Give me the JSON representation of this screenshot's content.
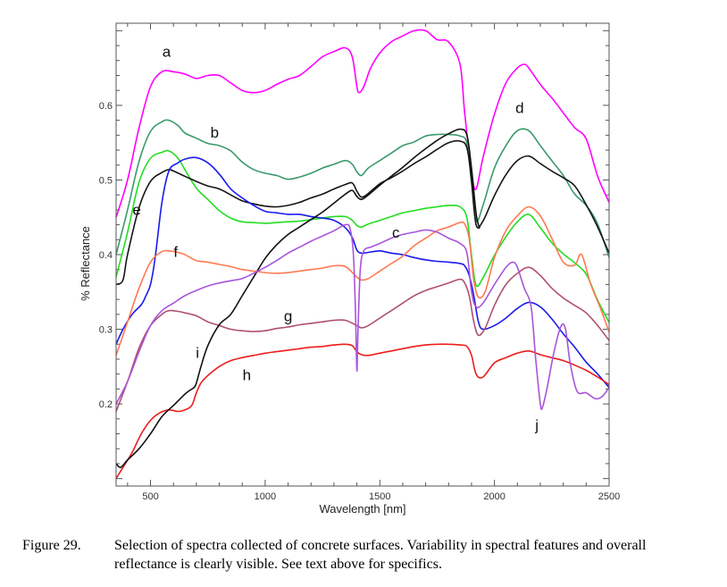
{
  "chart_data": {
    "type": "line",
    "xlabel": "Wavelength [nm]",
    "ylabel": "% Reflectance",
    "xlim": [
      350,
      2500
    ],
    "ylim": [
      0.09,
      0.71
    ],
    "xticks": [
      500,
      1000,
      1500,
      2000,
      2500
    ],
    "yticks": [
      0.2,
      0.3,
      0.4,
      0.5,
      0.6
    ],
    "grid": false,
    "series": [
      {
        "name": "a",
        "color": "#ff00ff",
        "label_at": [
          570,
          0.665
        ],
        "x": [
          350,
          400,
          450,
          500,
          550,
          600,
          650,
          700,
          750,
          800,
          850,
          900,
          950,
          1000,
          1050,
          1100,
          1150,
          1200,
          1250,
          1300,
          1350,
          1380,
          1400,
          1410,
          1430,
          1460,
          1500,
          1550,
          1600,
          1650,
          1700,
          1750,
          1800,
          1850,
          1870,
          1900,
          1920,
          1950,
          2000,
          2050,
          2100,
          2130,
          2150,
          2200,
          2250,
          2300,
          2350,
          2400,
          2450,
          2500
        ],
        "y": [
          0.45,
          0.5,
          0.57,
          0.625,
          0.645,
          0.645,
          0.642,
          0.636,
          0.64,
          0.64,
          0.63,
          0.62,
          0.617,
          0.62,
          0.628,
          0.635,
          0.64,
          0.652,
          0.665,
          0.672,
          0.677,
          0.665,
          0.625,
          0.617,
          0.625,
          0.65,
          0.67,
          0.685,
          0.693,
          0.7,
          0.7,
          0.688,
          0.685,
          0.655,
          0.59,
          0.51,
          0.488,
          0.53,
          0.588,
          0.63,
          0.65,
          0.655,
          0.65,
          0.628,
          0.61,
          0.59,
          0.57,
          0.555,
          0.505,
          0.47
        ]
      },
      {
        "name": "b",
        "color": "#3a9a6a",
        "label_at": [
          780,
          0.557
        ],
        "x": [
          350,
          400,
          450,
          500,
          550,
          580,
          620,
          650,
          700,
          750,
          800,
          850,
          900,
          950,
          1000,
          1050,
          1100,
          1150,
          1200,
          1250,
          1300,
          1350,
          1380,
          1400,
          1420,
          1450,
          1500,
          1550,
          1600,
          1650,
          1700,
          1750,
          1800,
          1850,
          1880,
          1900,
          1920,
          1950,
          2000,
          2050,
          2100,
          2150,
          2200,
          2250,
          2300,
          2350,
          2400,
          2450,
          2500
        ],
        "y": [
          0.4,
          0.46,
          0.525,
          0.565,
          0.578,
          0.58,
          0.573,
          0.563,
          0.556,
          0.549,
          0.546,
          0.539,
          0.524,
          0.514,
          0.509,
          0.506,
          0.501,
          0.504,
          0.509,
          0.516,
          0.521,
          0.526,
          0.521,
          0.511,
          0.506,
          0.516,
          0.526,
          0.536,
          0.546,
          0.551,
          0.559,
          0.561,
          0.561,
          0.559,
          0.549,
          0.495,
          0.445,
          0.466,
          0.516,
          0.546,
          0.566,
          0.566,
          0.546,
          0.526,
          0.506,
          0.481,
          0.466,
          0.441,
          0.396
        ]
      },
      {
        "name": "c",
        "color": "#22dd22",
        "label_at": [
          1570,
          0.423
        ],
        "x": [
          350,
          400,
          450,
          500,
          550,
          580,
          620,
          650,
          700,
          750,
          800,
          850,
          900,
          950,
          1000,
          1050,
          1100,
          1150,
          1200,
          1250,
          1300,
          1350,
          1380,
          1400,
          1420,
          1450,
          1500,
          1550,
          1600,
          1650,
          1700,
          1750,
          1800,
          1850,
          1880,
          1900,
          1920,
          1950,
          2000,
          2050,
          2100,
          2150,
          2200,
          2250,
          2300,
          2350,
          2400,
          2450,
          2500
        ],
        "y": [
          0.37,
          0.43,
          0.497,
          0.529,
          0.537,
          0.539,
          0.529,
          0.514,
          0.489,
          0.474,
          0.459,
          0.449,
          0.444,
          0.443,
          0.442,
          0.443,
          0.444,
          0.445,
          0.447,
          0.449,
          0.451,
          0.451,
          0.446,
          0.439,
          0.437,
          0.441,
          0.446,
          0.451,
          0.456,
          0.459,
          0.462,
          0.464,
          0.466,
          0.464,
          0.449,
          0.399,
          0.359,
          0.369,
          0.399,
          0.424,
          0.444,
          0.454,
          0.436,
          0.416,
          0.401,
          0.389,
          0.374,
          0.339,
          0.309
        ]
      },
      {
        "name": "d",
        "color": "#151515",
        "label_at": [
          2110,
          0.59
        ],
        "x": [
          350,
          380,
          400,
          450,
          500,
          550,
          580,
          600,
          650,
          700,
          750,
          800,
          850,
          900,
          950,
          1000,
          1050,
          1100,
          1150,
          1200,
          1250,
          1300,
          1350,
          1380,
          1400,
          1420,
          1450,
          1500,
          1550,
          1600,
          1650,
          1700,
          1750,
          1800,
          1850,
          1880,
          1900,
          1920,
          1950,
          2000,
          2050,
          2100,
          2150,
          2200,
          2250,
          2300,
          2350,
          2400,
          2450,
          2500
        ],
        "y": [
          0.36,
          0.366,
          0.4,
          0.463,
          0.498,
          0.51,
          0.514,
          0.512,
          0.505,
          0.498,
          0.492,
          0.488,
          0.48,
          0.472,
          0.468,
          0.465,
          0.464,
          0.466,
          0.47,
          0.476,
          0.481,
          0.488,
          0.494,
          0.496,
          0.485,
          0.477,
          0.482,
          0.495,
          0.503,
          0.512,
          0.522,
          0.531,
          0.541,
          0.55,
          0.552,
          0.543,
          0.5,
          0.44,
          0.445,
          0.479,
          0.507,
          0.526,
          0.532,
          0.522,
          0.512,
          0.503,
          0.492,
          0.467,
          0.437,
          0.402
        ]
      },
      {
        "name": "e",
        "color": "#1a1aee",
        "label_at": [
          440,
          0.453
        ],
        "x": [
          350,
          380,
          420,
          460,
          480,
          500,
          520,
          550,
          580,
          620,
          650,
          700,
          750,
          800,
          850,
          900,
          950,
          1000,
          1050,
          1100,
          1150,
          1200,
          1250,
          1300,
          1350,
          1380,
          1400,
          1420,
          1450,
          1500,
          1550,
          1600,
          1650,
          1700,
          1750,
          1800,
          1850,
          1870,
          1890,
          1910,
          1930,
          1950,
          2000,
          2050,
          2100,
          2150,
          2200,
          2250,
          2300,
          2350,
          2400,
          2450,
          2500
        ],
        "y": [
          0.28,
          0.3,
          0.32,
          0.333,
          0.345,
          0.36,
          0.395,
          0.47,
          0.512,
          0.523,
          0.528,
          0.53,
          0.523,
          0.508,
          0.488,
          0.476,
          0.466,
          0.458,
          0.456,
          0.454,
          0.454,
          0.451,
          0.449,
          0.446,
          0.436,
          0.423,
          0.406,
          0.402,
          0.403,
          0.405,
          0.402,
          0.4,
          0.396,
          0.393,
          0.391,
          0.39,
          0.388,
          0.385,
          0.372,
          0.345,
          0.31,
          0.3,
          0.305,
          0.315,
          0.328,
          0.336,
          0.33,
          0.314,
          0.294,
          0.276,
          0.256,
          0.24,
          0.222
        ]
      },
      {
        "name": "f",
        "color": "#ff7a50",
        "label_at": [
          610,
          0.397
        ],
        "x": [
          350,
          400,
          450,
          500,
          550,
          580,
          620,
          650,
          700,
          750,
          800,
          850,
          900,
          950,
          1000,
          1050,
          1100,
          1150,
          1200,
          1250,
          1300,
          1350,
          1400,
          1420,
          1450,
          1500,
          1550,
          1600,
          1650,
          1700,
          1750,
          1800,
          1850,
          1870,
          1890,
          1910,
          1930,
          1960,
          2000,
          2050,
          2100,
          2150,
          2200,
          2250,
          2300,
          2350,
          2380,
          2420,
          2460,
          2500
        ],
        "y": [
          0.265,
          0.31,
          0.355,
          0.39,
          0.404,
          0.405,
          0.403,
          0.4,
          0.392,
          0.39,
          0.387,
          0.384,
          0.38,
          0.378,
          0.376,
          0.375,
          0.376,
          0.378,
          0.38,
          0.382,
          0.385,
          0.384,
          0.37,
          0.366,
          0.368,
          0.378,
          0.388,
          0.398,
          0.412,
          0.422,
          0.432,
          0.437,
          0.443,
          0.441,
          0.421,
          0.366,
          0.343,
          0.351,
          0.396,
          0.432,
          0.452,
          0.464,
          0.452,
          0.422,
          0.39,
          0.386,
          0.4,
          0.36,
          0.33,
          0.296
        ]
      },
      {
        "name": "g",
        "color": "#b05070",
        "label_at": [
          1100,
          0.311
        ],
        "x": [
          350,
          400,
          450,
          500,
          550,
          580,
          620,
          650,
          700,
          750,
          800,
          850,
          900,
          950,
          1000,
          1050,
          1100,
          1150,
          1200,
          1250,
          1300,
          1350,
          1400,
          1420,
          1450,
          1500,
          1550,
          1600,
          1650,
          1700,
          1750,
          1800,
          1850,
          1870,
          1890,
          1910,
          1930,
          1960,
          2000,
          2050,
          2100,
          2150,
          2200,
          2250,
          2300,
          2350,
          2400,
          2450,
          2500
        ],
        "y": [
          0.19,
          0.23,
          0.275,
          0.305,
          0.32,
          0.325,
          0.324,
          0.322,
          0.318,
          0.31,
          0.305,
          0.3,
          0.298,
          0.297,
          0.298,
          0.301,
          0.303,
          0.306,
          0.308,
          0.31,
          0.312,
          0.312,
          0.305,
          0.302,
          0.305,
          0.315,
          0.325,
          0.335,
          0.345,
          0.352,
          0.357,
          0.362,
          0.367,
          0.362,
          0.345,
          0.31,
          0.292,
          0.302,
          0.332,
          0.36,
          0.375,
          0.383,
          0.372,
          0.355,
          0.342,
          0.332,
          0.322,
          0.305,
          0.285
        ]
      },
      {
        "name": "h",
        "color": "#ee1c1c",
        "label_at": [
          920,
          0.232
        ],
        "x": [
          350,
          380,
          420,
          460,
          500,
          540,
          580,
          620,
          650,
          680,
          700,
          720,
          750,
          800,
          850,
          900,
          950,
          1000,
          1050,
          1100,
          1150,
          1200,
          1250,
          1300,
          1350,
          1380,
          1400,
          1420,
          1450,
          1500,
          1550,
          1600,
          1650,
          1700,
          1750,
          1800,
          1850,
          1880,
          1900,
          1920,
          1950,
          2000,
          2050,
          2100,
          2150,
          2200,
          2250,
          2300,
          2350,
          2400,
          2450,
          2500
        ],
        "y": [
          0.1,
          0.115,
          0.135,
          0.16,
          0.178,
          0.188,
          0.192,
          0.19,
          0.192,
          0.198,
          0.215,
          0.228,
          0.238,
          0.25,
          0.258,
          0.262,
          0.265,
          0.268,
          0.27,
          0.272,
          0.274,
          0.276,
          0.277,
          0.279,
          0.28,
          0.278,
          0.27,
          0.266,
          0.265,
          0.268,
          0.271,
          0.274,
          0.277,
          0.279,
          0.28,
          0.28,
          0.279,
          0.277,
          0.265,
          0.24,
          0.236,
          0.255,
          0.262,
          0.268,
          0.271,
          0.266,
          0.262,
          0.258,
          0.252,
          0.245,
          0.236,
          0.226
        ]
      },
      {
        "name": "i",
        "color": "#111111",
        "label_at": [
          705,
          0.262
        ],
        "x": [
          350,
          370,
          400,
          450,
          500,
          550,
          600,
          650,
          670,
          690,
          700,
          720,
          750,
          800,
          850,
          900,
          950,
          1000,
          1050,
          1100,
          1150,
          1200,
          1250,
          1300,
          1350,
          1380,
          1400,
          1420,
          1450,
          1500,
          1550,
          1600,
          1650,
          1700,
          1750,
          1800,
          1850,
          1880,
          1900,
          1920,
          1935
        ],
        "y": [
          0.12,
          0.115,
          0.125,
          0.14,
          0.16,
          0.183,
          0.198,
          0.213,
          0.218,
          0.222,
          0.228,
          0.25,
          0.278,
          0.306,
          0.32,
          0.345,
          0.37,
          0.395,
          0.413,
          0.427,
          0.437,
          0.447,
          0.457,
          0.469,
          0.481,
          0.486,
          0.478,
          0.474,
          0.48,
          0.493,
          0.505,
          0.517,
          0.53,
          0.542,
          0.553,
          0.562,
          0.568,
          0.56,
          0.515,
          0.455,
          0.435
        ]
      },
      {
        "name": "j",
        "color": "#a855d8",
        "label_at": [
          2185,
          0.165
        ],
        "x": [
          350,
          400,
          450,
          500,
          550,
          600,
          650,
          700,
          750,
          800,
          850,
          900,
          950,
          1000,
          1050,
          1100,
          1150,
          1200,
          1250,
          1300,
          1350,
          1370,
          1385,
          1395,
          1400,
          1405,
          1415,
          1430,
          1460,
          1500,
          1550,
          1600,
          1650,
          1700,
          1750,
          1800,
          1850,
          1880,
          1900,
          1920,
          1950,
          2000,
          2050,
          2080,
          2100,
          2130,
          2160,
          2180,
          2200,
          2210,
          2230,
          2260,
          2290,
          2310,
          2330,
          2360,
          2400,
          2440,
          2470,
          2500
        ],
        "y": [
          0.2,
          0.23,
          0.27,
          0.305,
          0.325,
          0.335,
          0.345,
          0.352,
          0.358,
          0.362,
          0.365,
          0.368,
          0.375,
          0.383,
          0.392,
          0.402,
          0.41,
          0.418,
          0.425,
          0.432,
          0.44,
          0.435,
          0.4,
          0.31,
          0.244,
          0.3,
          0.38,
          0.405,
          0.41,
          0.415,
          0.422,
          0.427,
          0.43,
          0.433,
          0.43,
          0.422,
          0.415,
          0.402,
          0.35,
          0.33,
          0.335,
          0.36,
          0.383,
          0.39,
          0.383,
          0.355,
          0.33,
          0.26,
          0.2,
          0.196,
          0.222,
          0.27,
          0.304,
          0.3,
          0.255,
          0.217,
          0.215,
          0.207,
          0.21,
          0.222
        ]
      }
    ]
  },
  "caption": {
    "number": "Figure 29.",
    "text": "Selection of spectra collected of concrete surfaces. Variability in spectral features and overall reflectance is clearly visible. See text above for specifics."
  }
}
